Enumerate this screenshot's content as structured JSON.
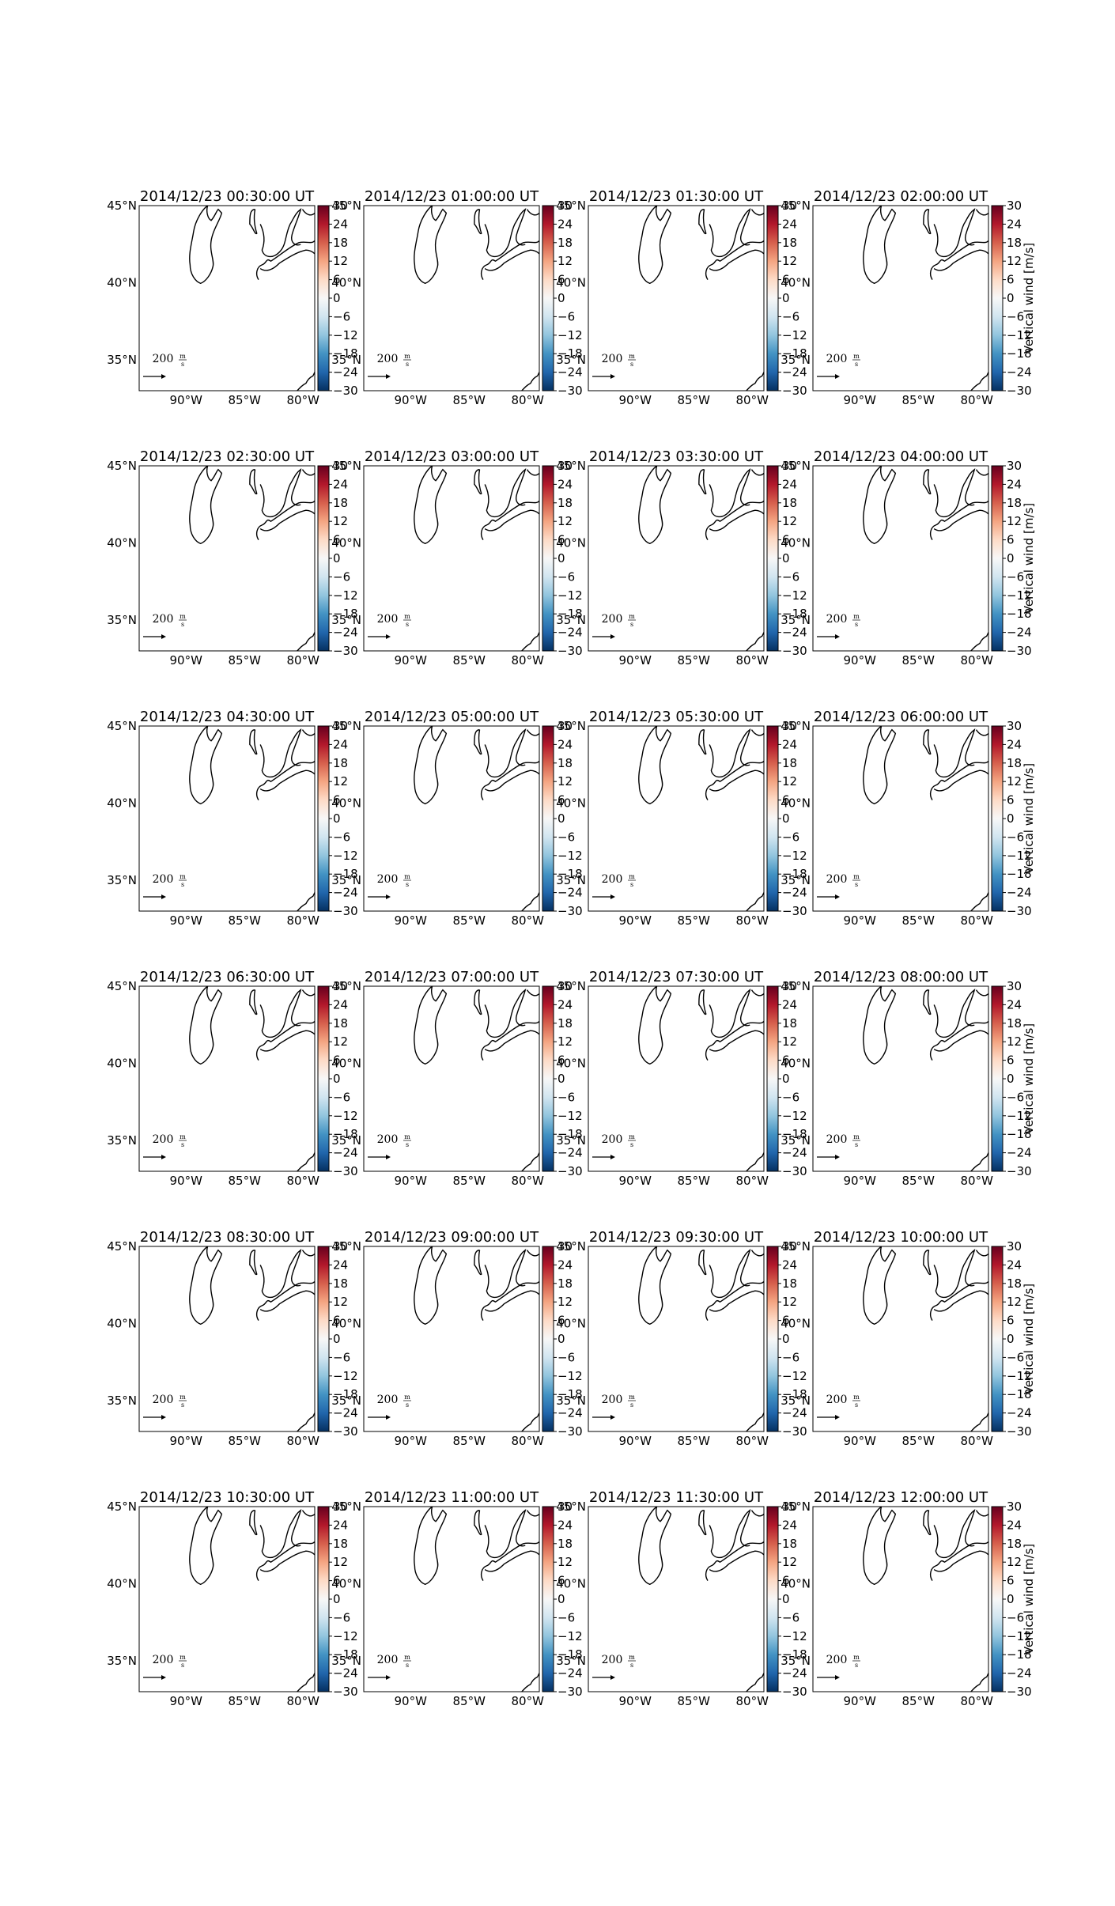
{
  "figure": {
    "panel_titles": [
      [
        "2014/12/23 00:30:00 UT",
        "2014/12/23 01:00:00 UT",
        "2014/12/23 01:30:00 UT",
        "2014/12/23 02:00:00 UT"
      ],
      [
        "2014/12/23 02:30:00 UT",
        "2014/12/23 03:00:00 UT",
        "2014/12/23 03:30:00 UT",
        "2014/12/23 04:00:00 UT"
      ],
      [
        "2014/12/23 04:30:00 UT",
        "2014/12/23 05:00:00 UT",
        "2014/12/23 05:30:00 UT",
        "2014/12/23 06:00:00 UT"
      ],
      [
        "2014/12/23 06:30:00 UT",
        "2014/12/23 07:00:00 UT",
        "2014/12/23 07:30:00 UT",
        "2014/12/23 08:00:00 UT"
      ],
      [
        "2014/12/23 08:30:00 UT",
        "2014/12/23 09:00:00 UT",
        "2014/12/23 09:30:00 UT",
        "2014/12/23 10:00:00 UT"
      ],
      [
        "2014/12/23 10:30:00 UT",
        "2014/12/23 11:00:00 UT",
        "2014/12/23 11:30:00 UT",
        "2014/12/23 12:00:00 UT"
      ]
    ],
    "lat_ticks": [
      "45°N",
      "40°N",
      "35°N"
    ],
    "lon_ticks": [
      "90°W",
      "85°W",
      "80°W"
    ],
    "colorbar_ticks": [
      "30",
      "24",
      "18",
      "12",
      "6",
      "0",
      "−6",
      "−12",
      "−18",
      "−24",
      "−30"
    ],
    "colorbar_label": "Vertical wind [m/s]",
    "key_value": "200",
    "key_unit_top": "m",
    "key_unit_bottom": "s",
    "colormap_colors": [
      "#053061",
      "#2166ac",
      "#4393c3",
      "#92c5de",
      "#d1e5f0",
      "#f7f7f7",
      "#fddbc7",
      "#f4a582",
      "#d6604d",
      "#b2182b",
      "#67001f"
    ]
  },
  "chart_data": {
    "type": "map",
    "layout": "6 rows x 4 columns of map panels",
    "times": [
      "2014/12/23 00:30:00 UT",
      "2014/12/23 01:00:00 UT",
      "2014/12/23 01:30:00 UT",
      "2014/12/23 02:00:00 UT",
      "2014/12/23 02:30:00 UT",
      "2014/12/23 03:00:00 UT",
      "2014/12/23 03:30:00 UT",
      "2014/12/23 04:00:00 UT",
      "2014/12/23 04:30:00 UT",
      "2014/12/23 05:00:00 UT",
      "2014/12/23 05:30:00 UT",
      "2014/12/23 06:00:00 UT",
      "2014/12/23 06:30:00 UT",
      "2014/12/23 07:00:00 UT",
      "2014/12/23 07:30:00 UT",
      "2014/12/23 08:00:00 UT",
      "2014/12/23 08:30:00 UT",
      "2014/12/23 09:00:00 UT",
      "2014/12/23 09:30:00 UT",
      "2014/12/23 10:00:00 UT",
      "2014/12/23 10:30:00 UT",
      "2014/12/23 11:00:00 UT",
      "2014/12/23 11:30:00 UT",
      "2014/12/23 12:00:00 UT"
    ],
    "lon_range": [
      -94,
      -79
    ],
    "lat_range": [
      33,
      45
    ],
    "lon_ticks": [
      -90,
      -85,
      -80
    ],
    "lat_ticks": [
      45,
      40,
      35
    ],
    "colorbar": {
      "label": "Vertical wind [m/s]",
      "vmin": -30,
      "vmax": 30,
      "ticks": [
        30,
        24,
        18,
        12,
        6,
        0,
        -6,
        -12,
        -18,
        -24,
        -30
      ],
      "cmap": "RdBu_r"
    },
    "quiver_key": {
      "value": 200,
      "unit": "m/s"
    },
    "field": "no colored data visible in any panel"
  }
}
